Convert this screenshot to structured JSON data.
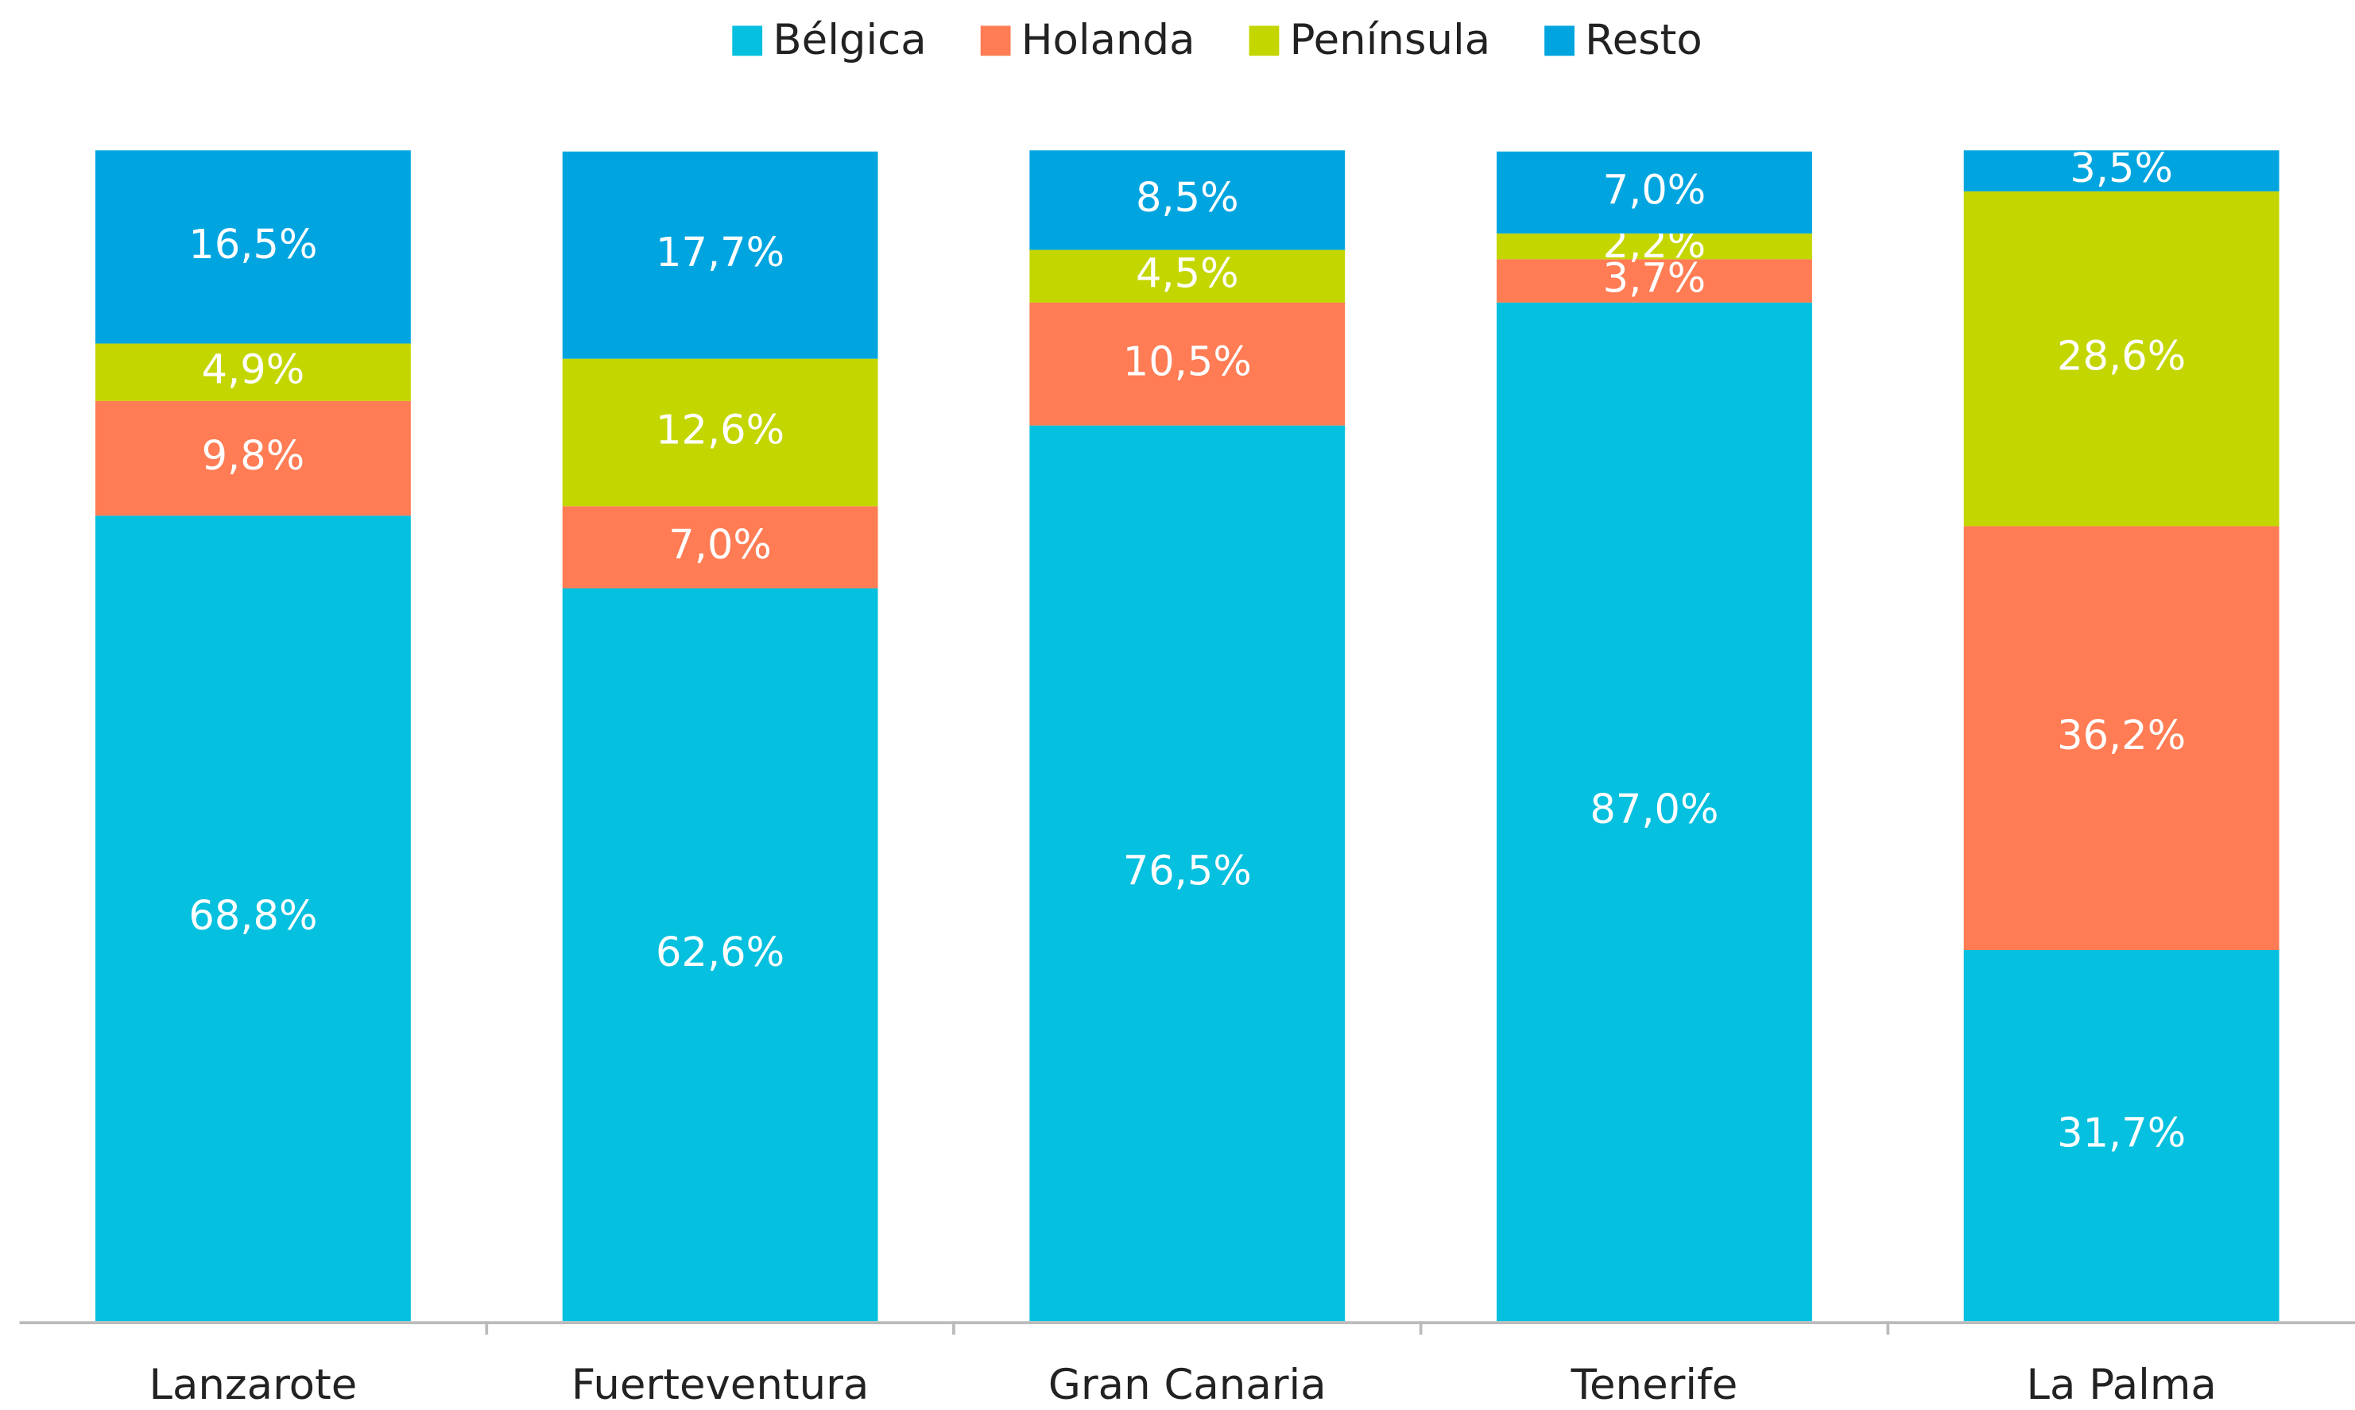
{
  "chart_data": {
    "type": "stacked_bar",
    "categories": [
      "Lanzarote",
      "Fuerteventura",
      "Gran Canaria",
      "Tenerife",
      "La Palma"
    ],
    "series": [
      {
        "name": "Bélgica",
        "color": "#05c0de",
        "values": [
          68.8,
          62.6,
          76.5,
          87.0,
          31.7
        ],
        "value_labels": [
          "68,8%",
          "62,6%",
          "76,5%",
          "87,0%",
          "31,7%"
        ]
      },
      {
        "name": "Holanda",
        "color": "#ff7c54",
        "values": [
          9.8,
          7.0,
          10.5,
          3.7,
          36.2
        ],
        "value_labels": [
          "9,8%",
          "7,0%",
          "10,5%",
          "3,7%",
          "36,2%"
        ]
      },
      {
        "name": "Península",
        "color": "#c4d600",
        "values": [
          4.9,
          12.6,
          4.5,
          2.2,
          28.6
        ],
        "value_labels": [
          "4,9%",
          "12,6%",
          "4,5%",
          "2,2%",
          "28,6%"
        ]
      },
      {
        "name": "Resto",
        "color": "#00a5e0",
        "values": [
          16.5,
          17.7,
          8.5,
          7.0,
          3.5
        ],
        "value_labels": [
          "16,5%",
          "17,7%",
          "8,5%",
          "7,0%",
          "3,5%"
        ]
      }
    ],
    "ylim": [
      0,
      100
    ],
    "legend": "top"
  }
}
